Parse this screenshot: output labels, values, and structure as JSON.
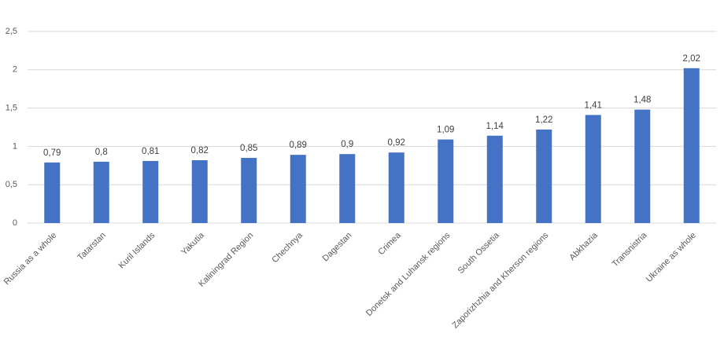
{
  "chart_data": {
    "type": "bar",
    "categories": [
      "Russia as a whole",
      "Tatarstan",
      "Kuril Islands",
      "Yakutia",
      "Kaliningrad Region",
      "Chechnya",
      "Dagestan",
      "Crimea",
      "Donetsk and Luhansk regions",
      "South Ossetia",
      "Zaporizhzhia and Kherson regions",
      "Abkhazia",
      "Transnistria",
      "Ukraine as whole"
    ],
    "values": [
      0.79,
      0.8,
      0.81,
      0.82,
      0.85,
      0.89,
      0.9,
      0.92,
      1.09,
      1.14,
      1.22,
      1.41,
      1.48,
      2.02
    ],
    "value_labels": [
      "0,79",
      "0,8",
      "0,81",
      "0,82",
      "0,85",
      "0,89",
      "0,9",
      "0,92",
      "1,09",
      "1,14",
      "1,22",
      "1,41",
      "1,48",
      "2,02"
    ],
    "color": "#4472c4",
    "ylim": [
      0,
      2.5
    ],
    "yticks": [
      0,
      {
        "value": 0.5,
        "label": "0,5"
      },
      1,
      {
        "value": 1.5,
        "label": "1,5"
      },
      2,
      {
        "value": 2.5,
        "label": "2,5"
      }
    ],
    "grid": true
  }
}
